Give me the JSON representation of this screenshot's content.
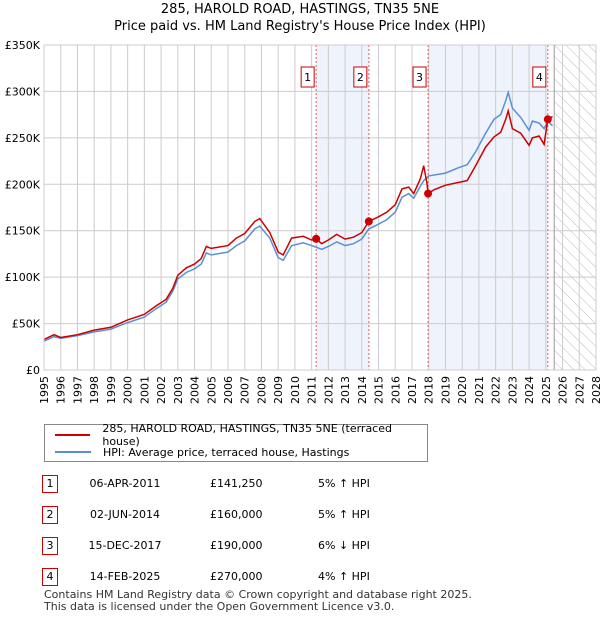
{
  "title": "285, HAROLD ROAD, HASTINGS, TN35 5NE",
  "subtitle": "Price paid vs. HM Land Registry's House Price Index (HPI)",
  "colors": {
    "price": "#cc0000",
    "hpi": "#5b8fd4",
    "shade": "#eef3fc"
  },
  "chart_data": {
    "type": "line",
    "xlim": [
      1995,
      2028
    ],
    "ylim": [
      0,
      350000
    ],
    "x_ticks": [
      "1995",
      "1996",
      "1997",
      "1998",
      "1999",
      "2000",
      "2001",
      "2002",
      "2003",
      "2004",
      "2005",
      "2006",
      "2007",
      "2008",
      "2009",
      "2010",
      "2011",
      "2012",
      "2013",
      "2014",
      "2015",
      "2016",
      "2017",
      "2018",
      "2019",
      "2020",
      "2021",
      "2022",
      "2023",
      "2024",
      "2025",
      "2026",
      "2027",
      "2028"
    ],
    "y_ticks": [
      {
        "v": 0,
        "label": "£0"
      },
      {
        "v": 50000,
        "label": "£50K"
      },
      {
        "v": 100000,
        "label": "£100K"
      },
      {
        "v": 150000,
        "label": "£150K"
      },
      {
        "v": 200000,
        "label": "£200K"
      },
      {
        "v": 250000,
        "label": "£250K"
      },
      {
        "v": 300000,
        "label": "£300K"
      },
      {
        "v": 350000,
        "label": "£350K"
      }
    ],
    "grid": true,
    "forecast_start": 2025.5,
    "series": [
      {
        "name": "285, HAROLD ROAD, HASTINGS, TN35 5NE (terraced house)",
        "color": "#cc0000",
        "points": [
          [
            1995,
            33000
          ],
          [
            1995.6,
            38000
          ],
          [
            1996,
            35000
          ],
          [
            1997,
            38000
          ],
          [
            1998,
            43000
          ],
          [
            1999,
            46000
          ],
          [
            2000,
            54000
          ],
          [
            2001,
            60000
          ],
          [
            2001.7,
            69000
          ],
          [
            2002.3,
            76000
          ],
          [
            2002.7,
            88000
          ],
          [
            2003,
            102000
          ],
          [
            2003.5,
            110000
          ],
          [
            2004,
            114000
          ],
          [
            2004.4,
            120000
          ],
          [
            2004.7,
            133000
          ],
          [
            2005,
            131000
          ],
          [
            2006,
            134000
          ],
          [
            2006.5,
            142000
          ],
          [
            2007,
            147000
          ],
          [
            2007.6,
            160000
          ],
          [
            2007.9,
            163000
          ],
          [
            2008.5,
            148000
          ],
          [
            2009,
            127000
          ],
          [
            2009.3,
            124000
          ],
          [
            2009.8,
            142000
          ],
          [
            2010.5,
            144000
          ],
          [
            2011,
            140000
          ],
          [
            2011.27,
            141250
          ],
          [
            2011.6,
            136000
          ],
          [
            2012,
            140000
          ],
          [
            2012.5,
            146000
          ],
          [
            2013,
            141000
          ],
          [
            2013.5,
            143000
          ],
          [
            2014,
            148000
          ],
          [
            2014.42,
            160000
          ],
          [
            2015,
            165000
          ],
          [
            2015.5,
            170000
          ],
          [
            2016,
            178000
          ],
          [
            2016.4,
            195000
          ],
          [
            2016.8,
            197000
          ],
          [
            2017.1,
            190000
          ],
          [
            2017.5,
            206000
          ],
          [
            2017.7,
            220000
          ],
          [
            2017.9,
            200000
          ],
          [
            2017.96,
            190000
          ],
          [
            2018.3,
            194000
          ],
          [
            2019,
            199000
          ],
          [
            2019.8,
            202000
          ],
          [
            2020.3,
            204000
          ],
          [
            2020.8,
            220000
          ],
          [
            2021.4,
            240000
          ],
          [
            2021.9,
            251000
          ],
          [
            2022.3,
            256000
          ],
          [
            2022.6,
            270000
          ],
          [
            2022.75,
            279000
          ],
          [
            2023,
            260000
          ],
          [
            2023.5,
            255000
          ],
          [
            2024,
            242000
          ],
          [
            2024.2,
            250000
          ],
          [
            2024.6,
            252000
          ],
          [
            2024.9,
            243000
          ],
          [
            2025.12,
            270000
          ],
          [
            2025.4,
            273000
          ]
        ]
      },
      {
        "name": "HPI: Average price, terraced house, Hastings",
        "color": "#5b8fd4",
        "points": [
          [
            1995,
            31000
          ],
          [
            1995.6,
            36000
          ],
          [
            1996,
            34000
          ],
          [
            1997,
            37000
          ],
          [
            1998,
            41000
          ],
          [
            1999,
            44000
          ],
          [
            2000,
            51000
          ],
          [
            2001,
            57000
          ],
          [
            2001.7,
            66000
          ],
          [
            2002.3,
            73000
          ],
          [
            2002.7,
            85000
          ],
          [
            2003,
            98000
          ],
          [
            2003.5,
            105000
          ],
          [
            2004,
            109000
          ],
          [
            2004.4,
            114000
          ],
          [
            2004.7,
            126000
          ],
          [
            2005,
            124000
          ],
          [
            2006,
            127000
          ],
          [
            2006.5,
            134000
          ],
          [
            2007,
            139000
          ],
          [
            2007.6,
            152000
          ],
          [
            2007.9,
            155000
          ],
          [
            2008.5,
            142000
          ],
          [
            2009,
            121000
          ],
          [
            2009.3,
            118000
          ],
          [
            2009.8,
            134000
          ],
          [
            2010.5,
            137000
          ],
          [
            2011,
            134000
          ],
          [
            2011.6,
            130000
          ],
          [
            2012,
            133000
          ],
          [
            2012.5,
            138000
          ],
          [
            2013,
            134000
          ],
          [
            2013.5,
            136000
          ],
          [
            2014,
            141000
          ],
          [
            2014.42,
            152000
          ],
          [
            2015,
            157000
          ],
          [
            2015.5,
            162000
          ],
          [
            2016,
            170000
          ],
          [
            2016.4,
            186000
          ],
          [
            2016.8,
            190000
          ],
          [
            2017.1,
            185000
          ],
          [
            2017.5,
            198000
          ],
          [
            2017.7,
            204000
          ],
          [
            2018,
            209000
          ],
          [
            2019,
            212000
          ],
          [
            2019.8,
            218000
          ],
          [
            2020.3,
            221000
          ],
          [
            2020.8,
            235000
          ],
          [
            2021.4,
            255000
          ],
          [
            2021.9,
            270000
          ],
          [
            2022.3,
            275000
          ],
          [
            2022.6,
            290000
          ],
          [
            2022.75,
            299000
          ],
          [
            2023,
            282000
          ],
          [
            2023.5,
            272000
          ],
          [
            2024,
            258000
          ],
          [
            2024.2,
            268000
          ],
          [
            2024.6,
            266000
          ],
          [
            2024.9,
            260000
          ],
          [
            2025.12,
            268000
          ],
          [
            2025.4,
            263000
          ]
        ]
      }
    ],
    "sales": [
      {
        "n": "1",
        "date": "06-APR-2011",
        "x": 2011.27,
        "price_value": 141250,
        "price": "£141,250",
        "hpi": "5% ↑ HPI"
      },
      {
        "n": "2",
        "date": "02-JUN-2014",
        "x": 2014.42,
        "price_value": 160000,
        "price": "£160,000",
        "hpi": "5% ↑ HPI"
      },
      {
        "n": "3",
        "date": "15-DEC-2017",
        "x": 2017.96,
        "price_value": 190000,
        "price": "£190,000",
        "hpi": "6% ↓ HPI"
      },
      {
        "n": "4",
        "date": "14-FEB-2025",
        "x": 2025.12,
        "price_value": 270000,
        "price": "£270,000",
        "hpi": "4% ↑ HPI"
      }
    ]
  },
  "legend": {
    "price": "285, HAROLD ROAD, HASTINGS, TN35 5NE (terraced house)",
    "hpi": "HPI: Average price, terraced house, Hastings"
  },
  "footer": {
    "line1": "Contains HM Land Registry data © Crown copyright and database right 2025.",
    "line2": "This data is licensed under the Open Government Licence v3.0."
  }
}
